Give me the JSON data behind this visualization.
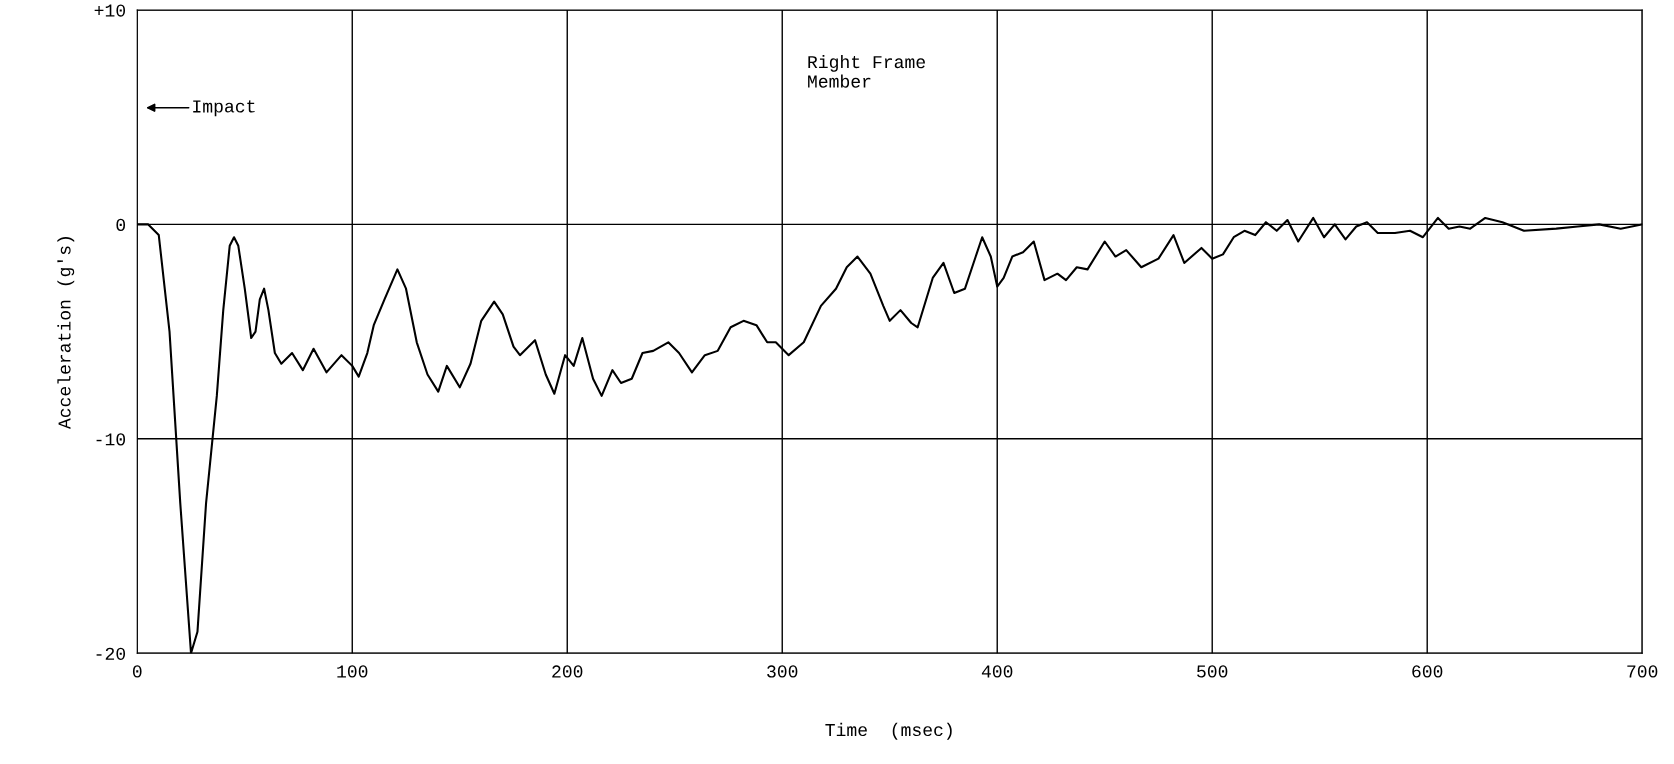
{
  "chart_data": {
    "type": "line",
    "xlabel": "Time  (msec)",
    "ylabel": "Acceleration (g's)",
    "xlim": [
      0,
      700
    ],
    "ylim": [
      -20,
      10
    ],
    "xticks": [
      0,
      100,
      200,
      300,
      400,
      500,
      600,
      700
    ],
    "yticks": [
      {
        "value": 10,
        "label": "+10"
      },
      0,
      -10,
      -20
    ],
    "grid": true,
    "annotations": [
      "Impact",
      "Right Frame\nMember"
    ],
    "series": [
      {
        "color": "#000000",
        "x": [
          0,
          5,
          10,
          15,
          20,
          25,
          28,
          32,
          37,
          40,
          43,
          45,
          47,
          50,
          53,
          55,
          57,
          59,
          61,
          64,
          67,
          72,
          77,
          82,
          88,
          95,
          100,
          103,
          107,
          110,
          115,
          121,
          125,
          130,
          135,
          140,
          144,
          150,
          155,
          160,
          166,
          170,
          175,
          178,
          185,
          190,
          194,
          199,
          203,
          207,
          212,
          216,
          221,
          225,
          230,
          235,
          240,
          247,
          252,
          258,
          264,
          270,
          276,
          282,
          288,
          293,
          297,
          303,
          310,
          318,
          325,
          330,
          335,
          341,
          347,
          350,
          355,
          360,
          363,
          370,
          375,
          380,
          385,
          390,
          393,
          397,
          400,
          403,
          407,
          412,
          417,
          422,
          428,
          432,
          437,
          442,
          450,
          455,
          460,
          467,
          475,
          482,
          487,
          495,
          500,
          505,
          510,
          515,
          520,
          525,
          530,
          535,
          540,
          547,
          552,
          557,
          562,
          567,
          572,
          577,
          585,
          592,
          598,
          605,
          610,
          615,
          620,
          627,
          635,
          645,
          660,
          670,
          680,
          690,
          700
        ],
        "values": [
          0,
          0,
          -0.5,
          -5,
          -13,
          -20,
          -19,
          -13,
          -8,
          -4,
          -1,
          -0.6,
          -1,
          -3,
          -5.3,
          -5,
          -3.5,
          -3,
          -4,
          -6,
          -6.5,
          -6,
          -6.8,
          -5.8,
          -6.9,
          -6.1,
          -6.6,
          -7.1,
          -6,
          -4.7,
          -3.5,
          -2.1,
          -3,
          -5.5,
          -7,
          -7.8,
          -6.6,
          -7.6,
          -6.5,
          -4.5,
          -3.6,
          -4.2,
          -5.7,
          -6.1,
          -5.4,
          -7,
          -7.9,
          -6.1,
          -6.6,
          -5.3,
          -7.2,
          -8,
          -6.8,
          -7.4,
          -7.2,
          -6,
          -5.9,
          -5.5,
          -6,
          -6.9,
          -6.1,
          -5.9,
          -4.8,
          -4.5,
          -4.7,
          -5.5,
          -5.5,
          -6.1,
          -5.5,
          -3.8,
          -3,
          -2,
          -1.5,
          -2.3,
          -3.8,
          -4.5,
          -4,
          -4.6,
          -4.8,
          -2.5,
          -1.8,
          -3.2,
          -3,
          -1.5,
          -0.6,
          -1.5,
          -2.9,
          -2.5,
          -1.5,
          -1.3,
          -0.8,
          -2.6,
          -2.3,
          -2.6,
          -2,
          -2.1,
          -0.8,
          -1.5,
          -1.2,
          -2,
          -1.6,
          -0.5,
          -1.8,
          -1.1,
          -1.6,
          -1.4,
          -0.6,
          -0.3,
          -0.5,
          0.1,
          -0.3,
          0.2,
          -0.8,
          0.3,
          -0.6,
          0,
          -0.7,
          -0.1,
          0.1,
          -0.4,
          -0.4,
          -0.3,
          -0.6,
          0.3,
          -0.2,
          -0.1,
          -0.2,
          0.3,
          0.1,
          -0.3,
          -0.2,
          -0.1,
          0,
          -0.2,
          0
        ]
      }
    ]
  }
}
